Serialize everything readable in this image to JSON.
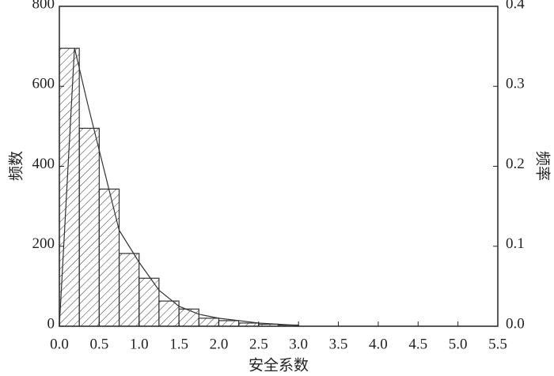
{
  "chart_data": {
    "type": "histogram",
    "xlabel": "安全系数",
    "ylabel": "频数",
    "y2label": "频率",
    "bins": [
      0,
      0.25,
      0.5,
      0.75,
      1.0,
      1.25,
      1.5,
      1.75,
      2.0,
      2.25,
      2.5,
      2.75,
      3.0
    ],
    "counts": [
      695,
      495,
      343,
      182,
      120,
      63,
      43,
      20,
      14,
      8,
      5,
      3
    ],
    "color": "#333333",
    "curve": {
      "axis": "y2",
      "x": [
        0,
        0.19,
        0.35,
        0.5,
        0.75,
        1.0,
        1.25,
        1.5,
        1.75,
        2.0,
        2.5,
        3.0
      ],
      "values": [
        0,
        0.348,
        0.28,
        0.22,
        0.12,
        0.08,
        0.045,
        0.025,
        0.015,
        0.01,
        0.004,
        0.001
      ]
    },
    "xlim": [
      0,
      5.5
    ],
    "xticks": [
      {
        "value": 0,
        "label": "0.0"
      },
      0.5,
      {
        "value": 1,
        "label": "1.0"
      },
      1.5,
      {
        "value": 2,
        "label": "2.0"
      },
      2.5,
      {
        "value": 3,
        "label": "3.0"
      },
      3.5,
      {
        "value": 4,
        "label": "4.0"
      },
      4.5,
      {
        "value": 5,
        "label": "5.0"
      },
      5.5
    ],
    "ylim": [
      0,
      800
    ],
    "yticks": [
      0,
      200,
      400,
      600,
      800
    ],
    "y2lim": [
      0,
      0.4
    ],
    "y2ticks": [
      {
        "value": 0,
        "label": "0.0"
      },
      0.1,
      0.2,
      0.3,
      0.4
    ]
  }
}
